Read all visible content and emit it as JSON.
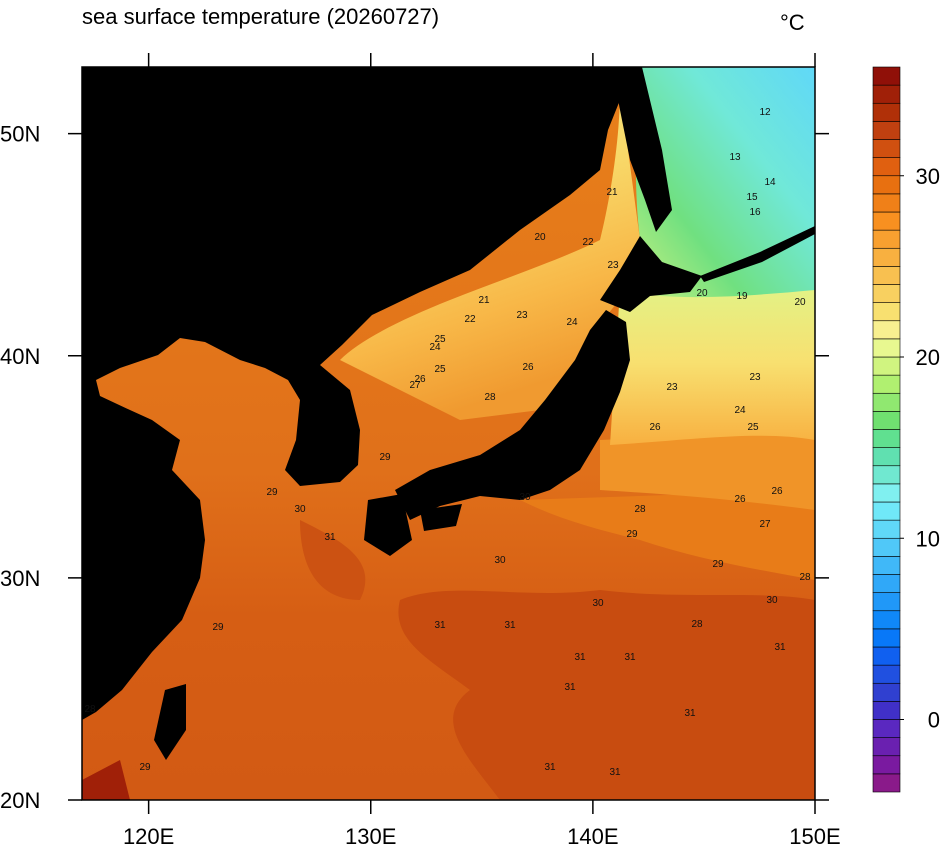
{
  "map": {
    "title": "sea surface temperature (20260727)",
    "unit": "°C",
    "xlim": [
      117,
      150
    ],
    "ylim": [
      20,
      53
    ],
    "xticks": [
      {
        "value": 120,
        "label": "120E"
      },
      {
        "value": 130,
        "label": "130E"
      },
      {
        "value": 140,
        "label": "140E"
      },
      {
        "value": 150,
        "label": "150E"
      }
    ],
    "yticks": [
      {
        "value": 20,
        "label": "20N"
      },
      {
        "value": 30,
        "label": "30N"
      },
      {
        "value": 40,
        "label": "40N"
      },
      {
        "value": 50,
        "label": "50N"
      }
    ],
    "colorbar": {
      "range": [
        -4,
        36
      ],
      "ticks": [
        0,
        10,
        20,
        30
      ],
      "colors": [
        "#8a1a8a",
        "#7a1aa0",
        "#6a20b0",
        "#5a28c0",
        "#4030c8",
        "#3040d0",
        "#2050e0",
        "#1060f0",
        "#0878f8",
        "#1088f8",
        "#2098f8",
        "#30a8f8",
        "#40b8f8",
        "#50c8f8",
        "#60d8f8",
        "#70e8f8",
        "#80f0f0",
        "#70e8d0",
        "#60e0b0",
        "#60e090",
        "#70e070",
        "#90e870",
        "#b0f070",
        "#d0f480",
        "#e8f890",
        "#f8f090",
        "#f8e070",
        "#f8d060",
        "#f8c050",
        "#f8b040",
        "#f8a030",
        "#f89020",
        "#f08018",
        "#e87010",
        "#e06010",
        "#d05010",
        "#c04010",
        "#b03008",
        "#a02008",
        "#901008"
      ]
    },
    "contour_labels": [
      21,
      20,
      22,
      23,
      21,
      23,
      22,
      24,
      25,
      24,
      26,
      25,
      27,
      26,
      28,
      29,
      29,
      28,
      30,
      30,
      31,
      30,
      31,
      31,
      31,
      31,
      31,
      31,
      30,
      31,
      29,
      29,
      28,
      26,
      27,
      26,
      26,
      24,
      25,
      23,
      23,
      20,
      19,
      20,
      12,
      13,
      14,
      15,
      16,
      28,
      29,
      29,
      31,
      31,
      30,
      28
    ]
  }
}
